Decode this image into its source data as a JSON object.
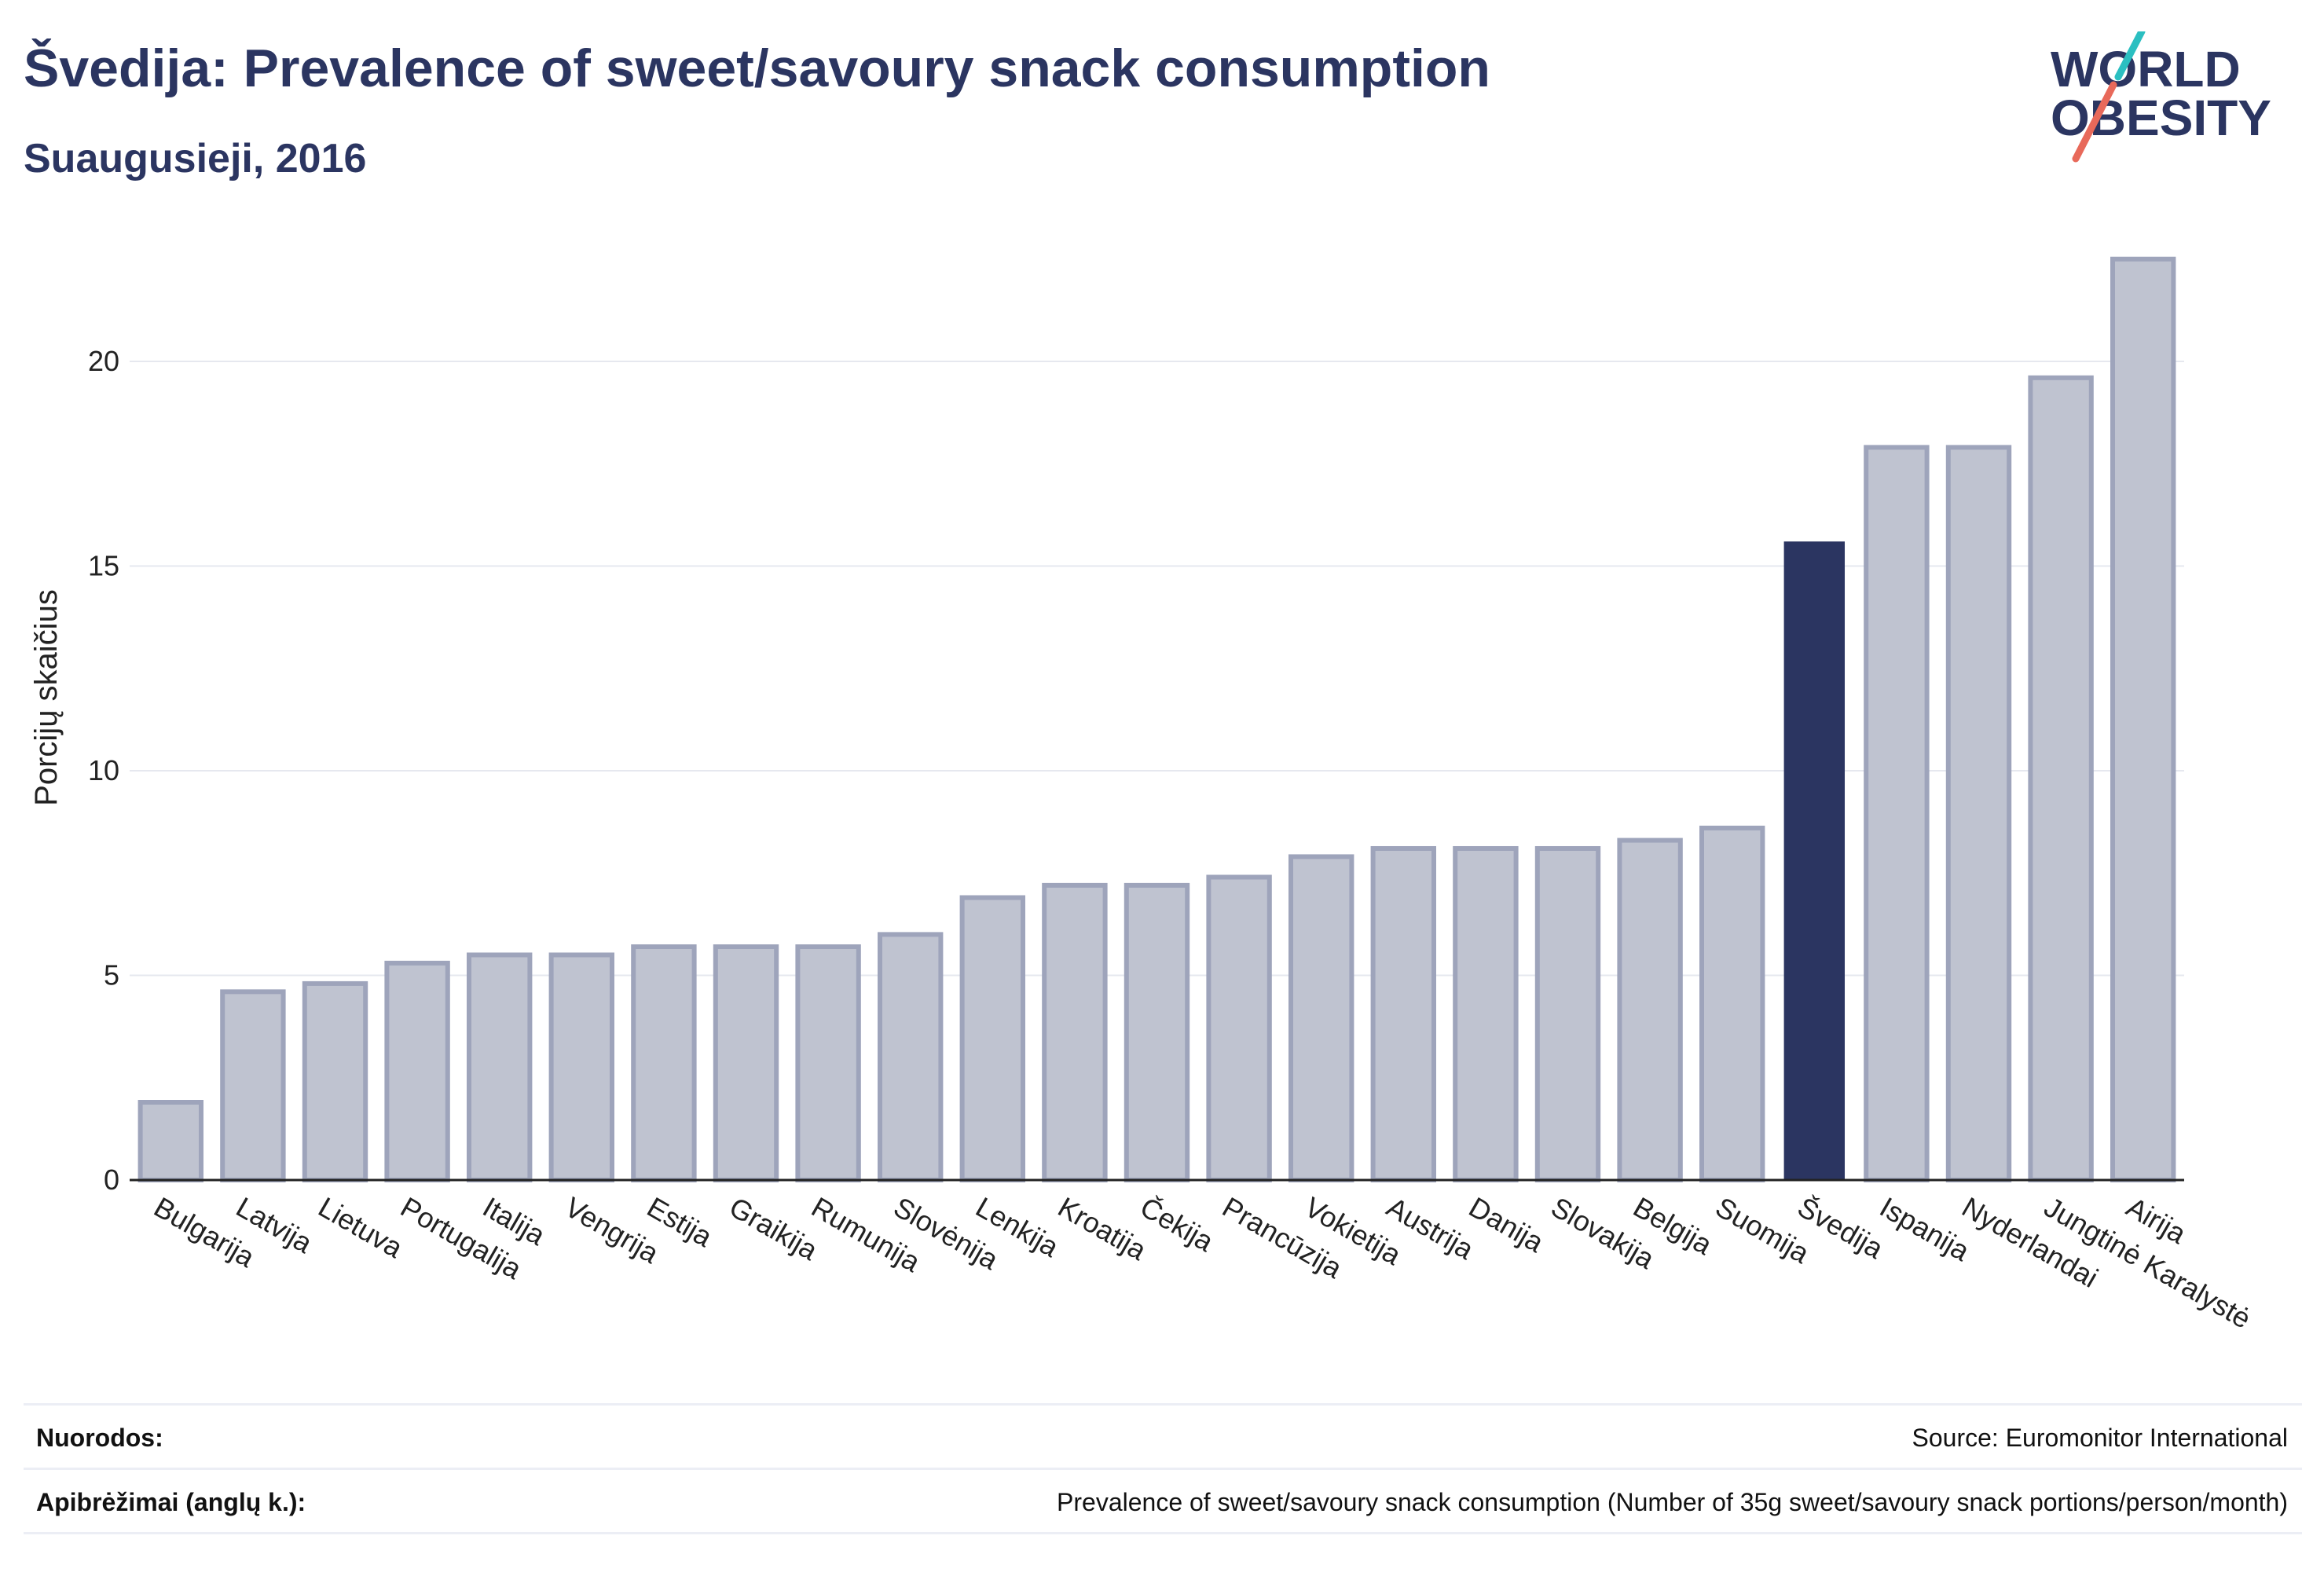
{
  "header": {
    "title": "Švedija: Prevalence of sweet/savoury snack consumption",
    "subtitle": "Suaugusieji, 2016"
  },
  "logo": {
    "line1": "WORLD",
    "line2": "OBESITY",
    "accent_colors": [
      "#2bbfc1",
      "#e8695a"
    ],
    "text_color": "#2b3561"
  },
  "chart_data": {
    "type": "bar",
    "ylabel": "Porcijų skaičius",
    "xlabel": "",
    "ylim": [
      0,
      23
    ],
    "yticks": [
      0,
      5,
      10,
      15,
      20
    ],
    "grid": true,
    "highlight": "Švedija",
    "colors": {
      "default": "#bfc3d0",
      "default_stroke": "#9ea4bb",
      "highlight": "#2b3561"
    },
    "categories": [
      "Bulgarija",
      "Latvija",
      "Lietuva",
      "Portugalija",
      "Italija",
      "Vengrija",
      "Estija",
      "Graikija",
      "Rumunija",
      "Slovėnija",
      "Lenkija",
      "Kroatija",
      "Čekija",
      "Prancūzija",
      "Vokietija",
      "Austrija",
      "Danija",
      "Slovakija",
      "Belgija",
      "Suomija",
      "Švedija",
      "Ispanija",
      "Nyderlandai",
      "Jungtinė Karalystė",
      "Airija"
    ],
    "values": [
      1.9,
      4.6,
      4.8,
      5.3,
      5.5,
      5.5,
      5.7,
      5.7,
      5.7,
      6.0,
      6.9,
      7.2,
      7.2,
      7.4,
      7.9,
      8.1,
      8.1,
      8.1,
      8.3,
      8.6,
      15.6,
      17.9,
      17.9,
      19.6,
      22.5
    ]
  },
  "footer": {
    "references_label": "Nuorodos:",
    "references_value": "Source: Euromonitor International",
    "definitions_label": "Apibrėžimai (anglų k.):",
    "definitions_value": "Prevalence of sweet/savoury snack consumption (Number of 35g sweet/savoury snack portions/person/month)"
  }
}
